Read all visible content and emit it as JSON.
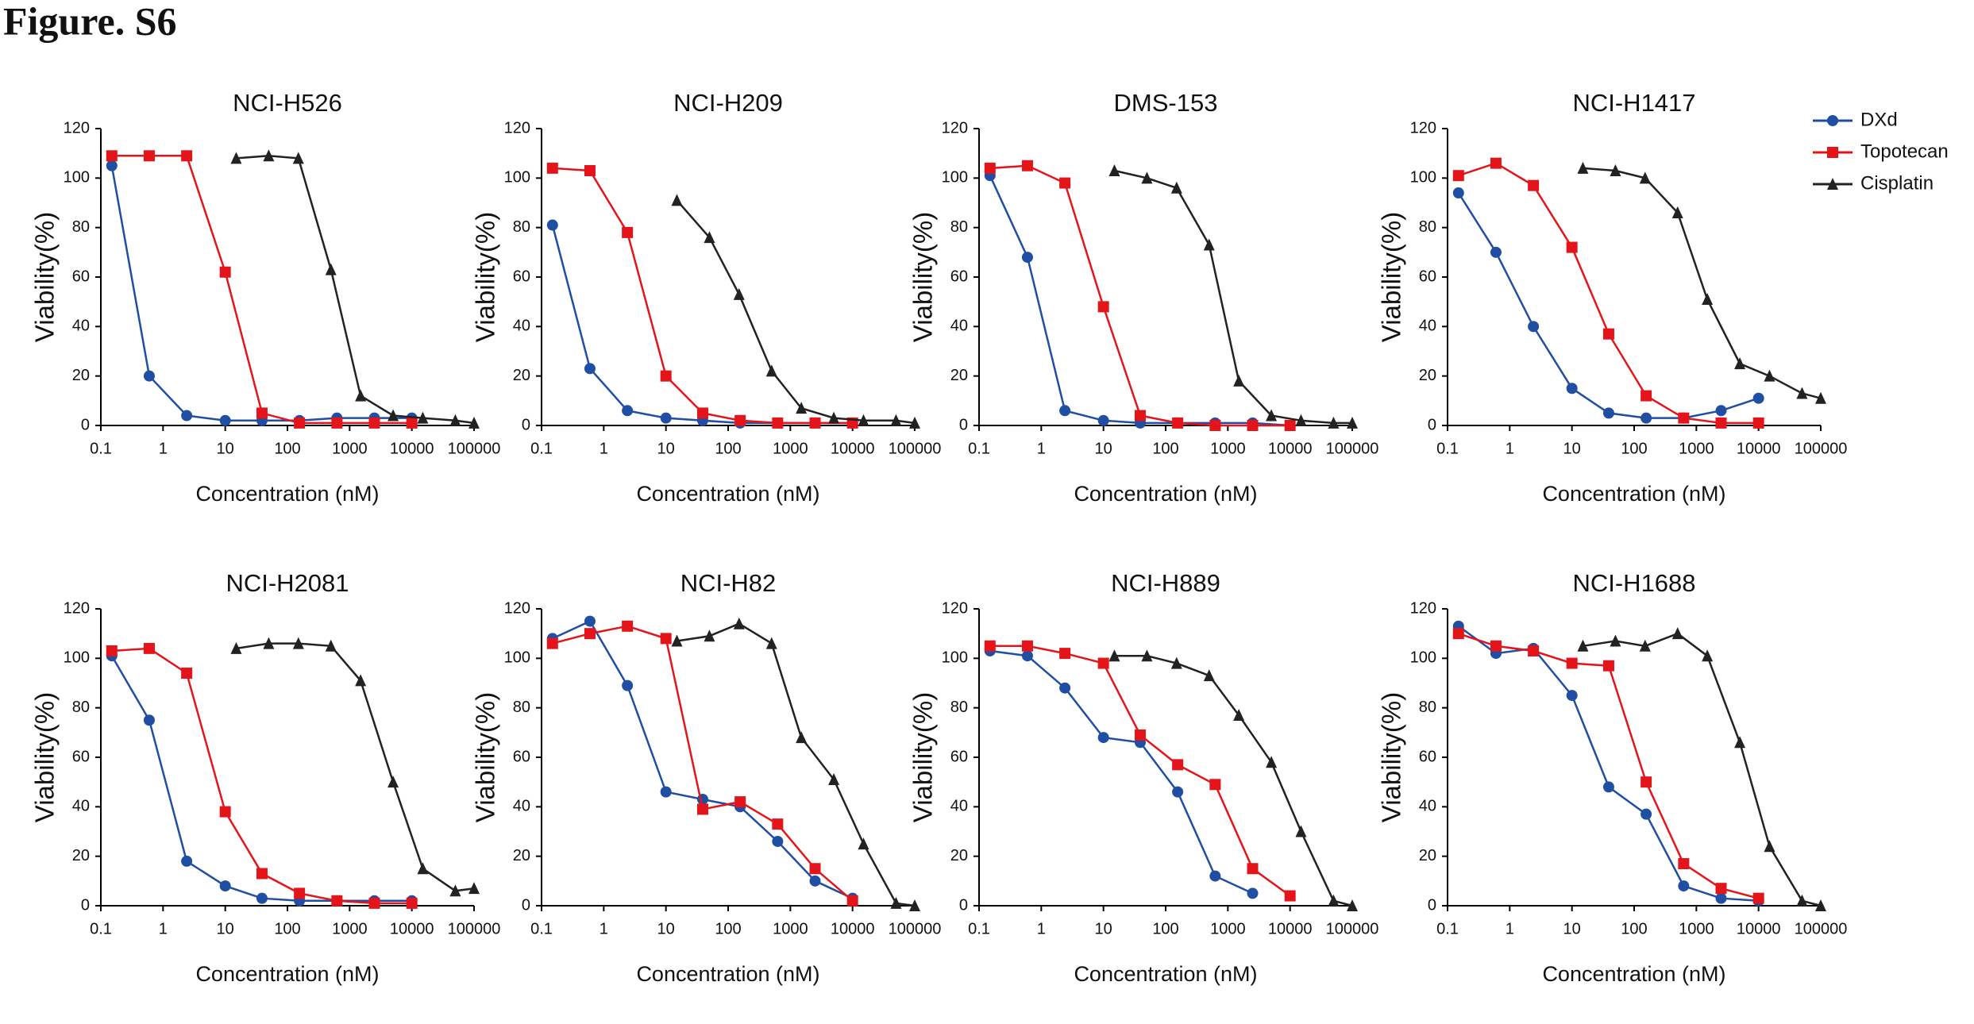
{
  "title": "Figure. S6",
  "chart_data": [
    {
      "type": "line",
      "title": "NCI-H526",
      "x_label": "Concentration (nM)",
      "y_label": "Viability(%)",
      "xlog": true,
      "xlim": [
        0.1,
        100000
      ],
      "xticks": [
        0.1,
        1,
        10,
        100,
        1000,
        10000,
        100000
      ],
      "ylim": [
        0,
        120
      ],
      "yticks": [
        0,
        20,
        40,
        60,
        80,
        100,
        120
      ],
      "series": [
        {
          "name": "DXd",
          "color": "#1f4ea3",
          "marker": "circle",
          "x": [
            0.15,
            0.6,
            2.4,
            10,
            39,
            156,
            625,
            2500,
            10000
          ],
          "values": [
            105,
            20,
            4,
            2,
            2,
            2,
            3,
            3,
            3
          ]
        },
        {
          "name": "Topotecan",
          "color": "#e3151b",
          "marker": "square",
          "x": [
            0.15,
            0.6,
            2.4,
            10,
            39,
            156,
            625,
            2500,
            10000
          ],
          "values": [
            109,
            109,
            109,
            62,
            5,
            1,
            1,
            1,
            1
          ]
        },
        {
          "name": "Cisplatin",
          "color": "#222222",
          "marker": "triangle",
          "x": [
            15,
            50,
            150,
            500,
            1500,
            5000,
            15000,
            50000,
            100000
          ],
          "values": [
            108,
            109,
            108,
            63,
            12,
            4,
            3,
            2,
            1
          ]
        }
      ]
    },
    {
      "type": "line",
      "title": "NCI-H209",
      "x_label": "Concentration (nM)",
      "y_label": "Viability(%)",
      "xlog": true,
      "xlim": [
        0.1,
        100000
      ],
      "xticks": [
        0.1,
        1,
        10,
        100,
        1000,
        10000,
        100000
      ],
      "ylim": [
        0,
        120
      ],
      "yticks": [
        0,
        20,
        40,
        60,
        80,
        100,
        120
      ],
      "series": [
        {
          "name": "DXd",
          "color": "#1f4ea3",
          "marker": "circle",
          "x": [
            0.15,
            0.6,
            2.4,
            10,
            39,
            156,
            625,
            2500,
            10000
          ],
          "values": [
            81,
            23,
            6,
            3,
            2,
            1,
            1,
            1,
            1
          ]
        },
        {
          "name": "Topotecan",
          "color": "#e3151b",
          "marker": "square",
          "x": [
            0.15,
            0.6,
            2.4,
            10,
            39,
            156,
            625,
            2500,
            10000
          ],
          "values": [
            104,
            103,
            78,
            20,
            5,
            2,
            1,
            1,
            1
          ]
        },
        {
          "name": "Cisplatin",
          "color": "#222222",
          "marker": "triangle",
          "x": [
            15,
            50,
            150,
            500,
            1500,
            5000,
            15000,
            50000,
            100000
          ],
          "values": [
            91,
            76,
            53,
            22,
            7,
            3,
            2,
            2,
            1
          ]
        }
      ]
    },
    {
      "type": "line",
      "title": "DMS-153",
      "x_label": "Concentration (nM)",
      "y_label": "Viability(%)",
      "xlog": true,
      "xlim": [
        0.1,
        100000
      ],
      "xticks": [
        0.1,
        1,
        10,
        100,
        1000,
        10000,
        100000
      ],
      "ylim": [
        0,
        120
      ],
      "yticks": [
        0,
        20,
        40,
        60,
        80,
        100,
        120
      ],
      "series": [
        {
          "name": "DXd",
          "color": "#1f4ea3",
          "marker": "circle",
          "x": [
            0.15,
            0.6,
            2.4,
            10,
            39,
            156,
            625,
            2500,
            10000
          ],
          "values": [
            101,
            68,
            6,
            2,
            1,
            1,
            1,
            1,
            0
          ]
        },
        {
          "name": "Topotecan",
          "color": "#e3151b",
          "marker": "square",
          "x": [
            0.15,
            0.6,
            2.4,
            10,
            39,
            156,
            625,
            2500,
            10000
          ],
          "values": [
            104,
            105,
            98,
            48,
            4,
            1,
            0,
            0,
            0
          ]
        },
        {
          "name": "Cisplatin",
          "color": "#222222",
          "marker": "triangle",
          "x": [
            15,
            50,
            150,
            500,
            1500,
            5000,
            15000,
            50000,
            100000
          ],
          "values": [
            103,
            100,
            96,
            73,
            18,
            4,
            2,
            1,
            1
          ]
        }
      ]
    },
    {
      "type": "line",
      "title": "NCI-H1417",
      "x_label": "Concentration (nM)",
      "y_label": "Viability(%)",
      "xlog": true,
      "xlim": [
        0.1,
        100000
      ],
      "xticks": [
        0.1,
        1,
        10,
        100,
        1000,
        10000,
        100000
      ],
      "ylim": [
        0,
        120
      ],
      "yticks": [
        0,
        20,
        40,
        60,
        80,
        100,
        120
      ],
      "series": [
        {
          "name": "DXd",
          "color": "#1f4ea3",
          "marker": "circle",
          "x": [
            0.15,
            0.6,
            2.4,
            10,
            39,
            156,
            625,
            2500,
            10000
          ],
          "values": [
            94,
            70,
            40,
            15,
            5,
            3,
            3,
            6,
            11
          ]
        },
        {
          "name": "Topotecan",
          "color": "#e3151b",
          "marker": "square",
          "x": [
            0.15,
            0.6,
            2.4,
            10,
            39,
            156,
            625,
            2500,
            10000
          ],
          "values": [
            101,
            106,
            97,
            72,
            37,
            12,
            3,
            1,
            1
          ]
        },
        {
          "name": "Cisplatin",
          "color": "#222222",
          "marker": "triangle",
          "x": [
            15,
            50,
            150,
            500,
            1500,
            5000,
            15000,
            50000,
            100000
          ],
          "values": [
            104,
            103,
            100,
            86,
            51,
            25,
            20,
            13,
            11
          ]
        }
      ]
    },
    {
      "type": "line",
      "title": "NCI-H2081",
      "x_label": "Concentration (nM)",
      "y_label": "Viability(%)",
      "xlog": true,
      "xlim": [
        0.1,
        100000
      ],
      "xticks": [
        0.1,
        1,
        10,
        100,
        1000,
        10000,
        100000
      ],
      "ylim": [
        0,
        120
      ],
      "yticks": [
        0,
        20,
        40,
        60,
        80,
        100,
        120
      ],
      "series": [
        {
          "name": "DXd",
          "color": "#1f4ea3",
          "marker": "circle",
          "x": [
            0.15,
            0.6,
            2.4,
            10,
            39,
            156,
            625,
            2500,
            10000
          ],
          "values": [
            101,
            75,
            18,
            8,
            3,
            2,
            2,
            2,
            2
          ]
        },
        {
          "name": "Topotecan",
          "color": "#e3151b",
          "marker": "square",
          "x": [
            0.15,
            0.6,
            2.4,
            10,
            39,
            156,
            625,
            2500,
            10000
          ],
          "values": [
            103,
            104,
            94,
            38,
            13,
            5,
            2,
            1,
            1
          ]
        },
        {
          "name": "Cisplatin",
          "color": "#222222",
          "marker": "triangle",
          "x": [
            15,
            50,
            150,
            500,
            1500,
            5000,
            15000,
            50000,
            100000
          ],
          "values": [
            104,
            106,
            106,
            105,
            91,
            50,
            15,
            6,
            7
          ]
        }
      ]
    },
    {
      "type": "line",
      "title": "NCI-H82",
      "x_label": "Concentration (nM)",
      "y_label": "Viability(%)",
      "xlog": true,
      "xlim": [
        0.1,
        100000
      ],
      "xticks": [
        0.1,
        1,
        10,
        100,
        1000,
        10000,
        100000
      ],
      "ylim": [
        0,
        120
      ],
      "yticks": [
        0,
        20,
        40,
        60,
        80,
        100,
        120
      ],
      "series": [
        {
          "name": "DXd",
          "color": "#1f4ea3",
          "marker": "circle",
          "x": [
            0.15,
            0.6,
            2.4,
            10,
            39,
            156,
            625,
            2500,
            10000
          ],
          "values": [
            108,
            115,
            89,
            46,
            43,
            40,
            26,
            10,
            3
          ]
        },
        {
          "name": "Topotecan",
          "color": "#e3151b",
          "marker": "square",
          "x": [
            0.15,
            0.6,
            2.4,
            10,
            39,
            156,
            625,
            2500,
            10000
          ],
          "values": [
            106,
            110,
            113,
            108,
            39,
            42,
            33,
            15,
            2
          ]
        },
        {
          "name": "Cisplatin",
          "color": "#222222",
          "marker": "triangle",
          "x": [
            15,
            50,
            150,
            500,
            1500,
            5000,
            15000,
            50000,
            100000
          ],
          "values": [
            107,
            109,
            114,
            106,
            68,
            51,
            25,
            1,
            0
          ]
        }
      ]
    },
    {
      "type": "line",
      "title": "NCI-H889",
      "x_label": "Concentration (nM)",
      "y_label": "Viability(%)",
      "xlog": true,
      "xlim": [
        0.1,
        100000
      ],
      "xticks": [
        0.1,
        1,
        10,
        100,
        1000,
        10000,
        100000
      ],
      "ylim": [
        0,
        120
      ],
      "yticks": [
        0,
        20,
        40,
        60,
        80,
        100,
        120
      ],
      "series": [
        {
          "name": "DXd",
          "color": "#1f4ea3",
          "marker": "circle",
          "x": [
            0.15,
            0.6,
            2.4,
            10,
            39,
            156,
            625,
            2500
          ],
          "values": [
            103,
            101,
            88,
            68,
            66,
            46,
            12,
            5
          ]
        },
        {
          "name": "Topotecan",
          "color": "#e3151b",
          "marker": "square",
          "x": [
            0.15,
            0.6,
            2.4,
            10,
            39,
            156,
            625,
            2500,
            10000
          ],
          "values": [
            105,
            105,
            102,
            98,
            69,
            57,
            49,
            15,
            4
          ]
        },
        {
          "name": "Cisplatin",
          "color": "#222222",
          "marker": "triangle",
          "x": [
            15,
            50,
            150,
            500,
            1500,
            5000,
            15000,
            50000,
            100000
          ],
          "values": [
            101,
            101,
            98,
            93,
            77,
            58,
            30,
            2,
            0
          ]
        }
      ]
    },
    {
      "type": "line",
      "title": "NCI-H1688",
      "x_label": "Concentration (nM)",
      "y_label": "Viability(%)",
      "xlog": true,
      "xlim": [
        0.1,
        100000
      ],
      "xticks": [
        0.1,
        1,
        10,
        100,
        1000,
        10000,
        100000
      ],
      "ylim": [
        0,
        120
      ],
      "yticks": [
        0,
        20,
        40,
        60,
        80,
        100,
        120
      ],
      "series": [
        {
          "name": "DXd",
          "color": "#1f4ea3",
          "marker": "circle",
          "x": [
            0.15,
            0.6,
            2.4,
            10,
            39,
            156,
            625,
            2500,
            10000
          ],
          "values": [
            113,
            102,
            104,
            85,
            48,
            37,
            8,
            3,
            2
          ]
        },
        {
          "name": "Topotecan",
          "color": "#e3151b",
          "marker": "square",
          "x": [
            0.15,
            0.6,
            2.4,
            10,
            39,
            156,
            625,
            2500,
            10000
          ],
          "values": [
            110,
            105,
            103,
            98,
            97,
            50,
            17,
            7,
            3
          ]
        },
        {
          "name": "Cisplatin",
          "color": "#222222",
          "marker": "triangle",
          "x": [
            15,
            50,
            150,
            500,
            1500,
            5000,
            15000,
            50000,
            100000
          ],
          "values": [
            105,
            107,
            105,
            110,
            101,
            66,
            24,
            2,
            0
          ]
        }
      ]
    }
  ]
}
